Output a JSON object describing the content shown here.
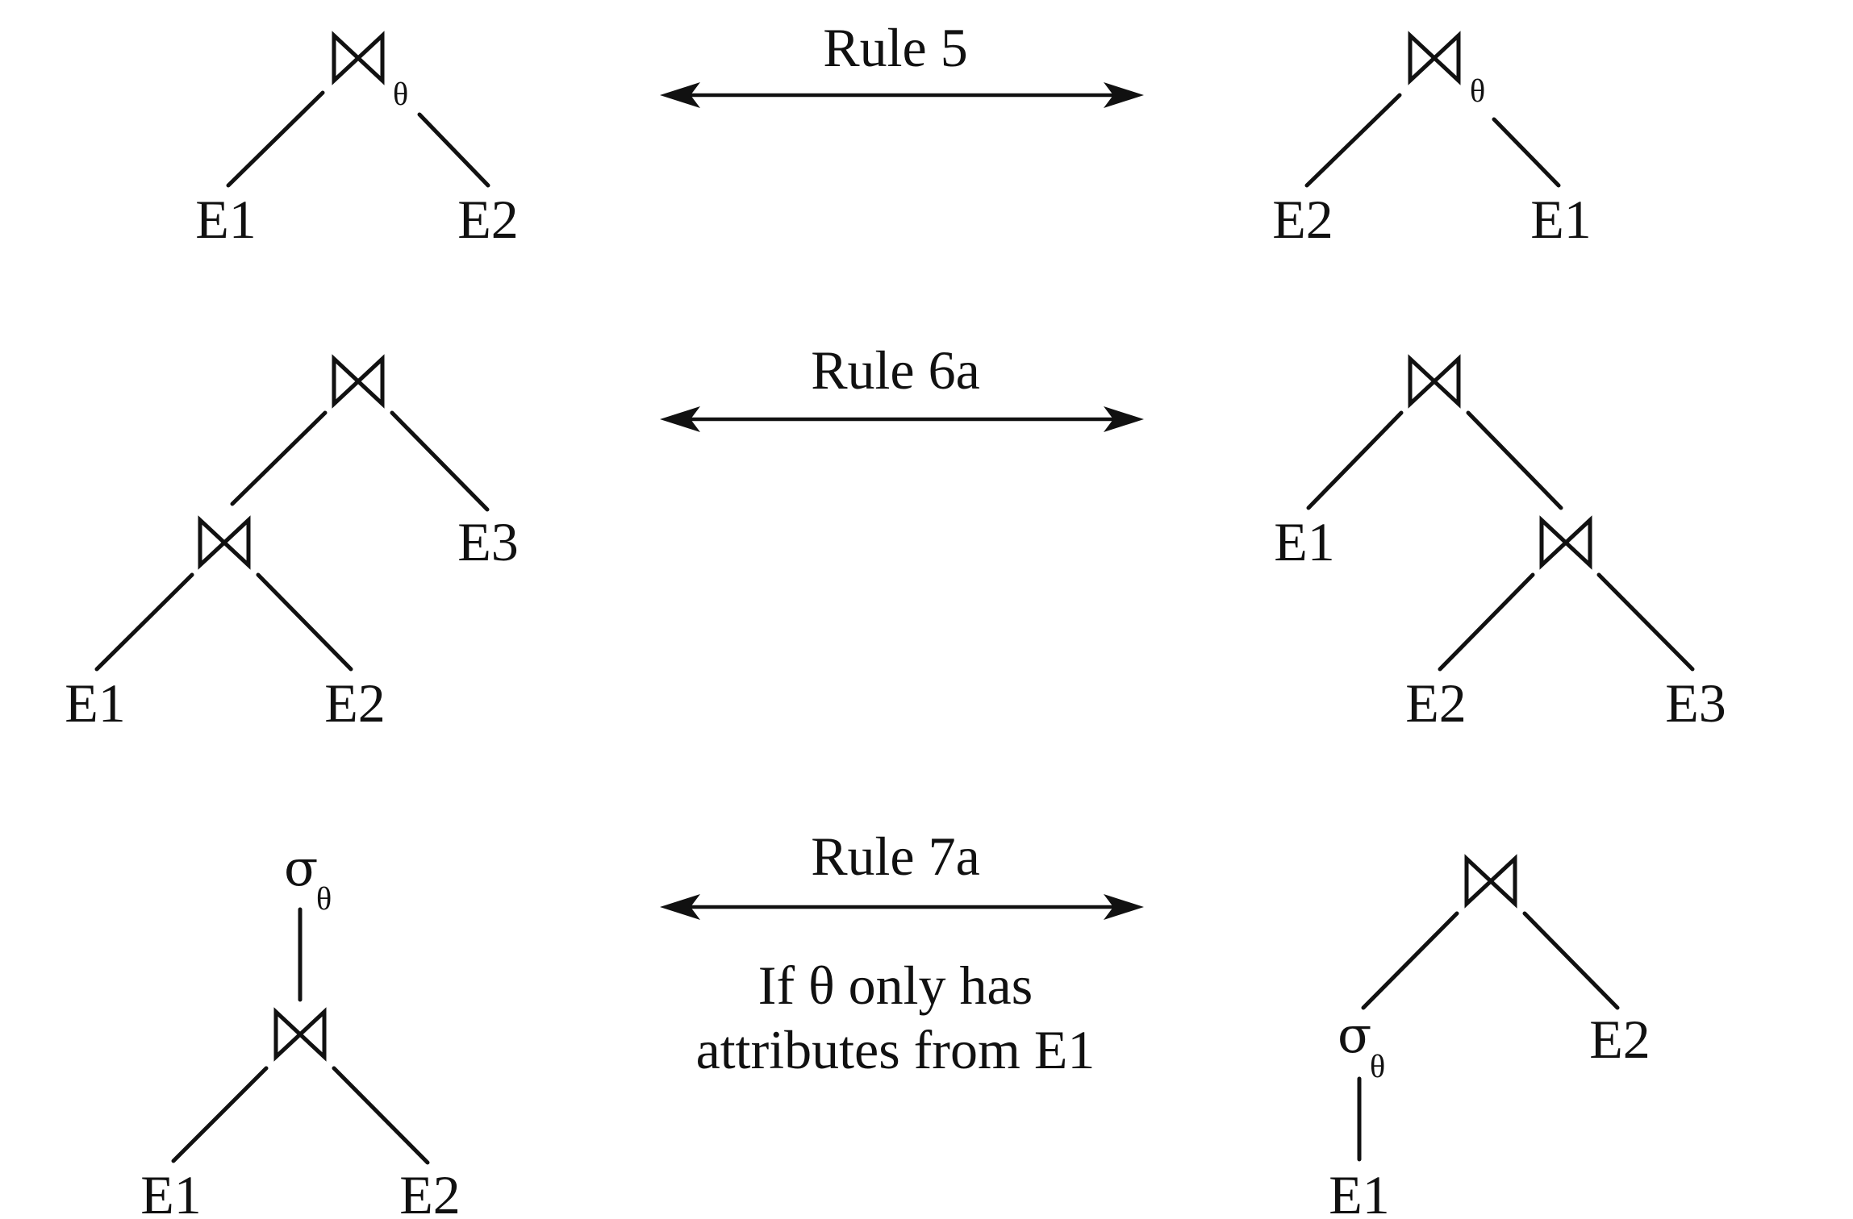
{
  "rules": [
    {
      "label": "Rule 5",
      "note_lines": []
    },
    {
      "label": "Rule 6a",
      "note_lines": []
    },
    {
      "label": "Rule 7a",
      "note_lines": [
        "If θ only has",
        "attributes from E1"
      ]
    }
  ],
  "symbols": {
    "theta": "θ",
    "sigma": "σ"
  },
  "relations": {
    "e1": "E1",
    "e2": "E2",
    "e3": "E3"
  },
  "icons": [
    "join-icon",
    "double-arrow-icon"
  ],
  "colors": {
    "ink": "#111111",
    "background": "#ffffff"
  }
}
